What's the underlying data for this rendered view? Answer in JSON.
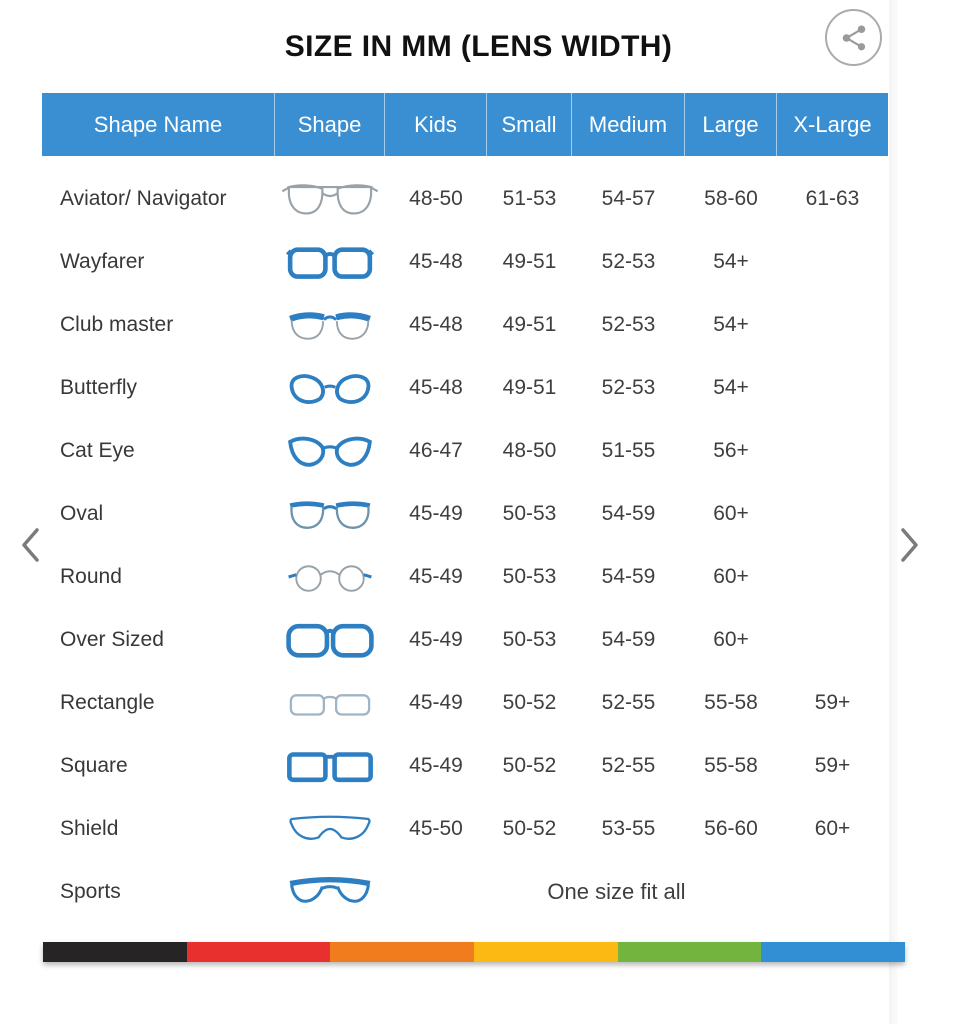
{
  "title": "SIZE IN MM (LENS WIDTH)",
  "icons": {
    "share": "share-icon",
    "prev": "chevron-left-icon",
    "next": "chevron-right-icon"
  },
  "colors": {
    "header_bg": "#3a8fd2",
    "frame_blue": "#2e7fc2",
    "frame_gray": "#98a2a8",
    "text": "#3f3f3f",
    "title_text": "#111111",
    "header_text": "#ffffff"
  },
  "table": {
    "columns": [
      "Shape Name",
      "Shape",
      "Kids",
      "Small",
      "Medium",
      "Large",
      "X-Large"
    ],
    "size_column_keys": [
      "kids",
      "small",
      "medium",
      "large",
      "xlarge"
    ],
    "rows": [
      {
        "name": "Aviator/ Navigator",
        "icon": "aviator-glasses-icon",
        "sizes": [
          "48-50",
          "51-53",
          "54-57",
          "58-60",
          "61-63"
        ]
      },
      {
        "name": "Wayfarer",
        "icon": "wayfarer-glasses-icon",
        "sizes": [
          "45-48",
          "49-51",
          "52-53",
          "54+",
          ""
        ]
      },
      {
        "name": "Club master",
        "icon": "clubmaster-glasses-icon",
        "sizes": [
          "45-48",
          "49-51",
          "52-53",
          "54+",
          ""
        ]
      },
      {
        "name": "Butterfly",
        "icon": "butterfly-glasses-icon",
        "sizes": [
          "45-48",
          "49-51",
          "52-53",
          "54+",
          ""
        ]
      },
      {
        "name": "Cat Eye",
        "icon": "cateye-glasses-icon",
        "sizes": [
          "46-47",
          "48-50",
          "51-55",
          "56+",
          ""
        ]
      },
      {
        "name": "Oval",
        "icon": "oval-glasses-icon",
        "sizes": [
          "45-49",
          "50-53",
          "54-59",
          "60+",
          ""
        ]
      },
      {
        "name": "Round",
        "icon": "round-glasses-icon",
        "sizes": [
          "45-49",
          "50-53",
          "54-59",
          "60+",
          ""
        ]
      },
      {
        "name": "Over Sized",
        "icon": "oversized-glasses-icon",
        "sizes": [
          "45-49",
          "50-53",
          "54-59",
          "60+",
          ""
        ]
      },
      {
        "name": "Rectangle",
        "icon": "rectangle-glasses-icon",
        "sizes": [
          "45-49",
          "50-52",
          "52-55",
          "55-58",
          "59+"
        ]
      },
      {
        "name": "Square",
        "icon": "square-glasses-icon",
        "sizes": [
          "45-49",
          "50-52",
          "52-55",
          "55-58",
          "59+"
        ]
      },
      {
        "name": "Shield",
        "icon": "shield-glasses-icon",
        "sizes": [
          "45-50",
          "50-52",
          "53-55",
          "56-60",
          "60+"
        ]
      },
      {
        "name": "Sports",
        "icon": "sports-glasses-icon",
        "span_text": "One size fit all"
      }
    ]
  },
  "stripe_colors": [
    "#262424",
    "#e8312e",
    "#f07c1e",
    "#fdb913",
    "#72b43e",
    "#338fd4"
  ]
}
